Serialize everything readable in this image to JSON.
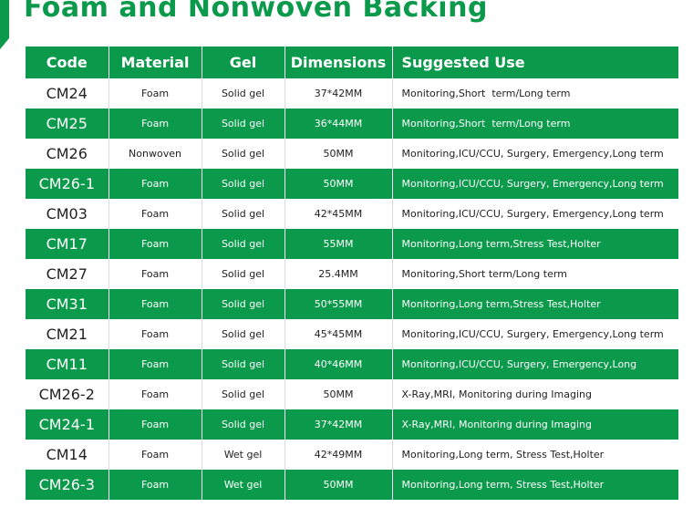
{
  "header": {
    "title": "Foam and Nonwoven Backing"
  },
  "table": {
    "columns": [
      "Code",
      "Material",
      "Gel",
      "Dimensions",
      "Suggested Use"
    ],
    "rows": [
      [
        "CM24",
        "Foam",
        "Solid gel",
        "37*42MM",
        "Monitoring,Short  term/Long term"
      ],
      [
        "CM25",
        "Foam",
        "Solid gel",
        "36*44MM",
        "Monitoring,Short  term/Long term"
      ],
      [
        "CM26",
        "Nonwoven",
        "Solid gel",
        "50MM",
        "Monitoring,ICU/CCU, Surgery, Emergency,Long term"
      ],
      [
        "CM26-1",
        "Foam",
        "Solid gel",
        "50MM",
        "Monitoring,ICU/CCU, Surgery, Emergency,Long term"
      ],
      [
        "CM03",
        "Foam",
        "Solid gel",
        "42*45MM",
        "Monitoring,ICU/CCU, Surgery, Emergency,Long term"
      ],
      [
        "CM17",
        "Foam",
        "Solid gel",
        "55MM",
        "Monitoring,Long term,Stress Test,Holter"
      ],
      [
        "CM27",
        "Foam",
        "Solid gel",
        "25.4MM",
        "Monitoring,Short term/Long term"
      ],
      [
        "CM31",
        "Foam",
        "Solid gel",
        "50*55MM",
        "Monitoring,Long term,Stress Test,Holter"
      ],
      [
        "CM21",
        "Foam",
        "Solid gel",
        "45*45MM",
        "Monitoring,ICU/CCU, Surgery, Emergency,Long term"
      ],
      [
        "CM11",
        "Foam",
        "Solid gel",
        "40*46MM",
        "Monitoring,ICU/CCU, Surgery, Emergency,Long"
      ],
      [
        "CM26-2",
        "Foam",
        "Solid gel",
        "50MM",
        "X-Ray,MRI, Monitoring during Imaging"
      ],
      [
        "CM24-1",
        "Foam",
        "Solid gel",
        "37*42MM",
        "X-Ray,MRI, Monitoring during Imaging"
      ],
      [
        "CM14",
        "Foam",
        "Wet gel",
        "42*49MM",
        "Monitoring,Long term, Stress Test,Holter"
      ],
      [
        "CM26-3",
        "Foam",
        "Wet gel",
        "50MM",
        "Monitoring,Long term, Stress Test,Holter"
      ]
    ]
  }
}
